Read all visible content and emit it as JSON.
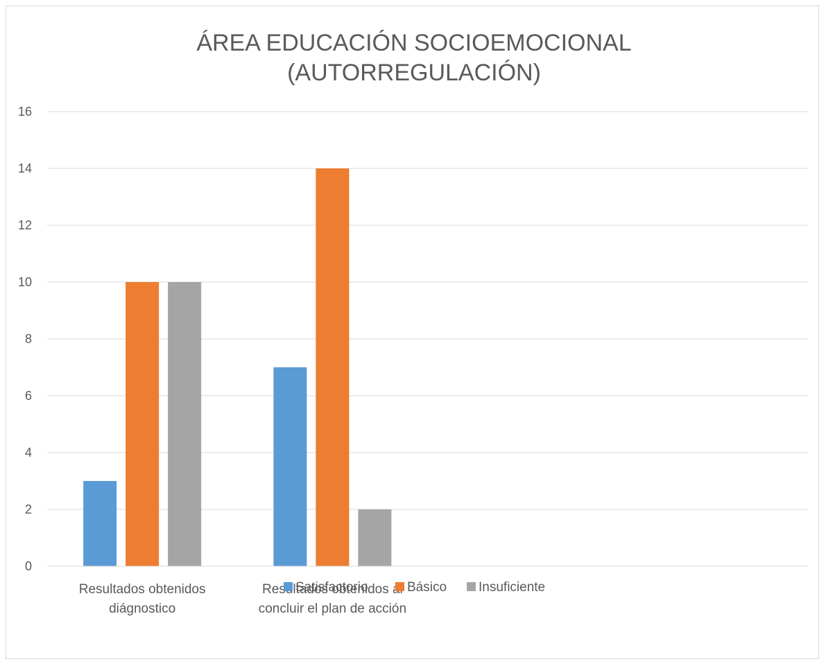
{
  "chart_data": {
    "type": "bar",
    "title_lines": [
      "ÁREA EDUCACIÓN SOCIOEMOCIONAL",
      "(AUTORREGULACIÓN)"
    ],
    "categories": [
      [
        "Resultados obtenidos",
        "diágnostico"
      ],
      [
        "Resultados obtenidos al",
        "concluir el plan de acción"
      ],
      [
        "",
        ""
      ],
      [
        "",
        ""
      ]
    ],
    "series": [
      {
        "name": "Satisfactorio",
        "color": "#5b9bd5",
        "values": [
          3,
          7,
          null,
          null
        ]
      },
      {
        "name": "Básico",
        "color": "#ed7d31",
        "values": [
          10,
          14,
          null,
          null
        ]
      },
      {
        "name": "Insuficiente",
        "color": "#a5a5a5",
        "values": [
          10,
          2,
          null,
          null
        ]
      }
    ],
    "ylim": [
      0,
      16
    ],
    "yticks": [
      "0",
      "2",
      "4",
      "6",
      "8",
      "10",
      "12",
      "14",
      "16"
    ],
    "grid": true,
    "legend_position": "bottom"
  }
}
